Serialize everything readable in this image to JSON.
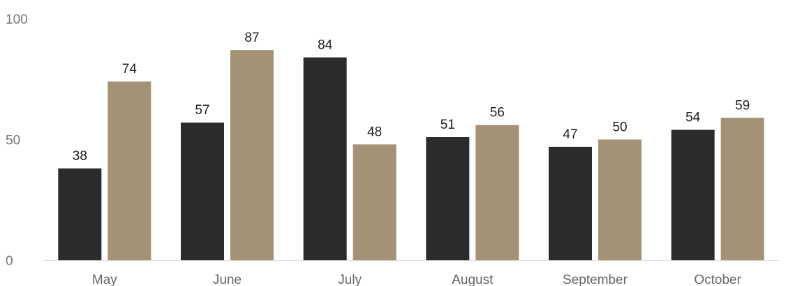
{
  "chart_data": {
    "type": "bar",
    "categories": [
      "May",
      "June",
      "July",
      "August",
      "September",
      "October"
    ],
    "series": [
      {
        "values": [
          38,
          57,
          84,
          51,
          47,
          54
        ],
        "color": "#2b2b2b"
      },
      {
        "values": [
          74,
          87,
          48,
          56,
          50,
          59
        ],
        "color": "#a39276"
      }
    ],
    "title": "",
    "xlabel": "",
    "ylabel": "",
    "ylim": [
      0,
      100
    ],
    "yticks": [
      0,
      50,
      100
    ],
    "grid": false,
    "legend": "none",
    "data_labels": true
  }
}
